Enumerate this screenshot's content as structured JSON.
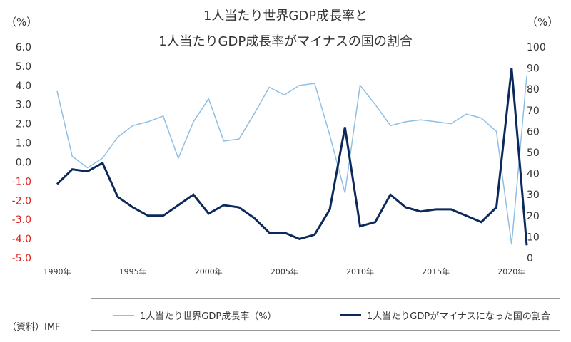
{
  "header": {
    "title_line1": "1人当たり世界GDP成長率と",
    "title_line2": "1人当たりGDP成長率がマイナスの国の割合",
    "unit_left": "（%）",
    "unit_right": "（%）"
  },
  "source": "（資料）IMF",
  "legend": {
    "series1_label": "1人当たり世界GDP成長率（%）",
    "series2_label": "1人当たりGDPがマイナスになった国の割合"
  },
  "colors": {
    "series1": "#8fbfe3",
    "series2": "#0b2a5b",
    "negative_tick": "#e0201b",
    "zero_line": "#bfbfbf"
  },
  "chart_data": {
    "type": "line",
    "x": [
      1990,
      1991,
      1992,
      1993,
      1994,
      1995,
      1996,
      1997,
      1998,
      1999,
      2000,
      2001,
      2002,
      2003,
      2004,
      2005,
      2006,
      2007,
      2008,
      2009,
      2010,
      2011,
      2012,
      2013,
      2014,
      2015,
      2016,
      2017,
      2018,
      2019,
      2020,
      2021
    ],
    "x_ticks": [
      "1990年",
      "1995年",
      "2000年",
      "2005年",
      "2010年",
      "2015年",
      "2020年"
    ],
    "x_tick_years": [
      1990,
      1995,
      2000,
      2005,
      2010,
      2015,
      2020
    ],
    "y_left_lim": [
      -5.0,
      6.0
    ],
    "y_left_ticks": [
      "6.0",
      "5.0",
      "4.0",
      "3.0",
      "2.0",
      "1.0",
      "0.0",
      "-1.0",
      "-2.0",
      "-3.0",
      "-4.0",
      "-5.0"
    ],
    "y_left_tick_values": [
      6,
      5,
      4,
      3,
      2,
      1,
      0,
      -1,
      -2,
      -3,
      -4,
      -5
    ],
    "y_right_lim": [
      0,
      100
    ],
    "y_right_ticks": [
      "100",
      "90",
      "80",
      "70",
      "60",
      "50",
      "40",
      "30",
      "20",
      "10",
      "0"
    ],
    "y_right_tick_values": [
      100,
      90,
      80,
      70,
      60,
      50,
      40,
      30,
      20,
      10,
      0
    ],
    "series": [
      {
        "name": "1人当たり世界GDP成長率（%）",
        "axis": "left",
        "values": [
          3.7,
          0.3,
          -0.3,
          0.2,
          1.3,
          1.9,
          2.1,
          2.4,
          0.2,
          2.1,
          3.3,
          1.1,
          1.2,
          2.5,
          3.9,
          3.5,
          4.0,
          4.1,
          1.4,
          -1.6,
          4.0,
          3.0,
          1.9,
          2.1,
          2.2,
          2.1,
          2.0,
          2.5,
          2.3,
          1.6,
          -4.3,
          4.5
        ]
      },
      {
        "name": "1人当たりGDPがマイナスになった国の割合",
        "axis": "right",
        "values": [
          35,
          42,
          41,
          45,
          29,
          24,
          20,
          20,
          25,
          30,
          21,
          25,
          24,
          19,
          12,
          12,
          9,
          11,
          23,
          62,
          15,
          17,
          30,
          24,
          22,
          23,
          23,
          20,
          17,
          24,
          90,
          6
        ]
      }
    ],
    "grid": false,
    "legend_position": "bottom"
  }
}
